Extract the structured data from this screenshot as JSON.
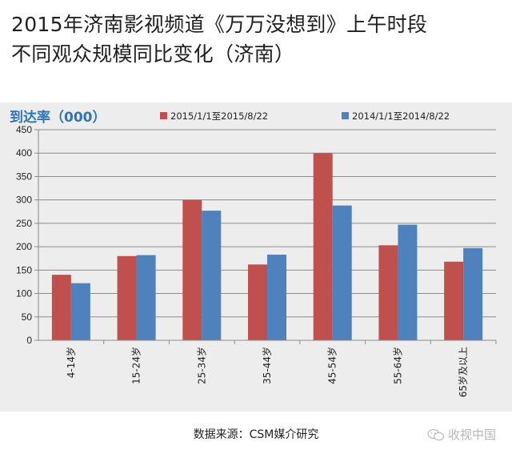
{
  "title_line1": "2015年济南影视频道《万万没想到》上午时段",
  "title_line2": "不同观众规模同比变化（济南）",
  "source": "数据来源：CSM媒介研究",
  "watermark": "收视中国",
  "watermark_icon": "wechat-icon",
  "chart_data": {
    "type": "bar",
    "ylabel": "到达率（000）",
    "xlabel": "",
    "ylim": [
      0,
      450
    ],
    "yticks": [
      0,
      50,
      100,
      150,
      200,
      250,
      300,
      350,
      400,
      450
    ],
    "categories": [
      "4-14岁",
      "15-24岁",
      "25-34岁",
      "35-44岁",
      "45-54岁",
      "55-64岁",
      "65岁及以上"
    ],
    "series": [
      {
        "name": "2015/1/1至2015/8/22",
        "color": "#c0504d",
        "values": [
          140,
          180,
          300,
          162,
          400,
          203,
          168
        ]
      },
      {
        "name": "2014/1/1至2014/8/22",
        "color": "#4f81bd",
        "values": [
          122,
          182,
          277,
          183,
          288,
          247,
          197
        ]
      }
    ],
    "grid": true,
    "legend_position": "top"
  }
}
